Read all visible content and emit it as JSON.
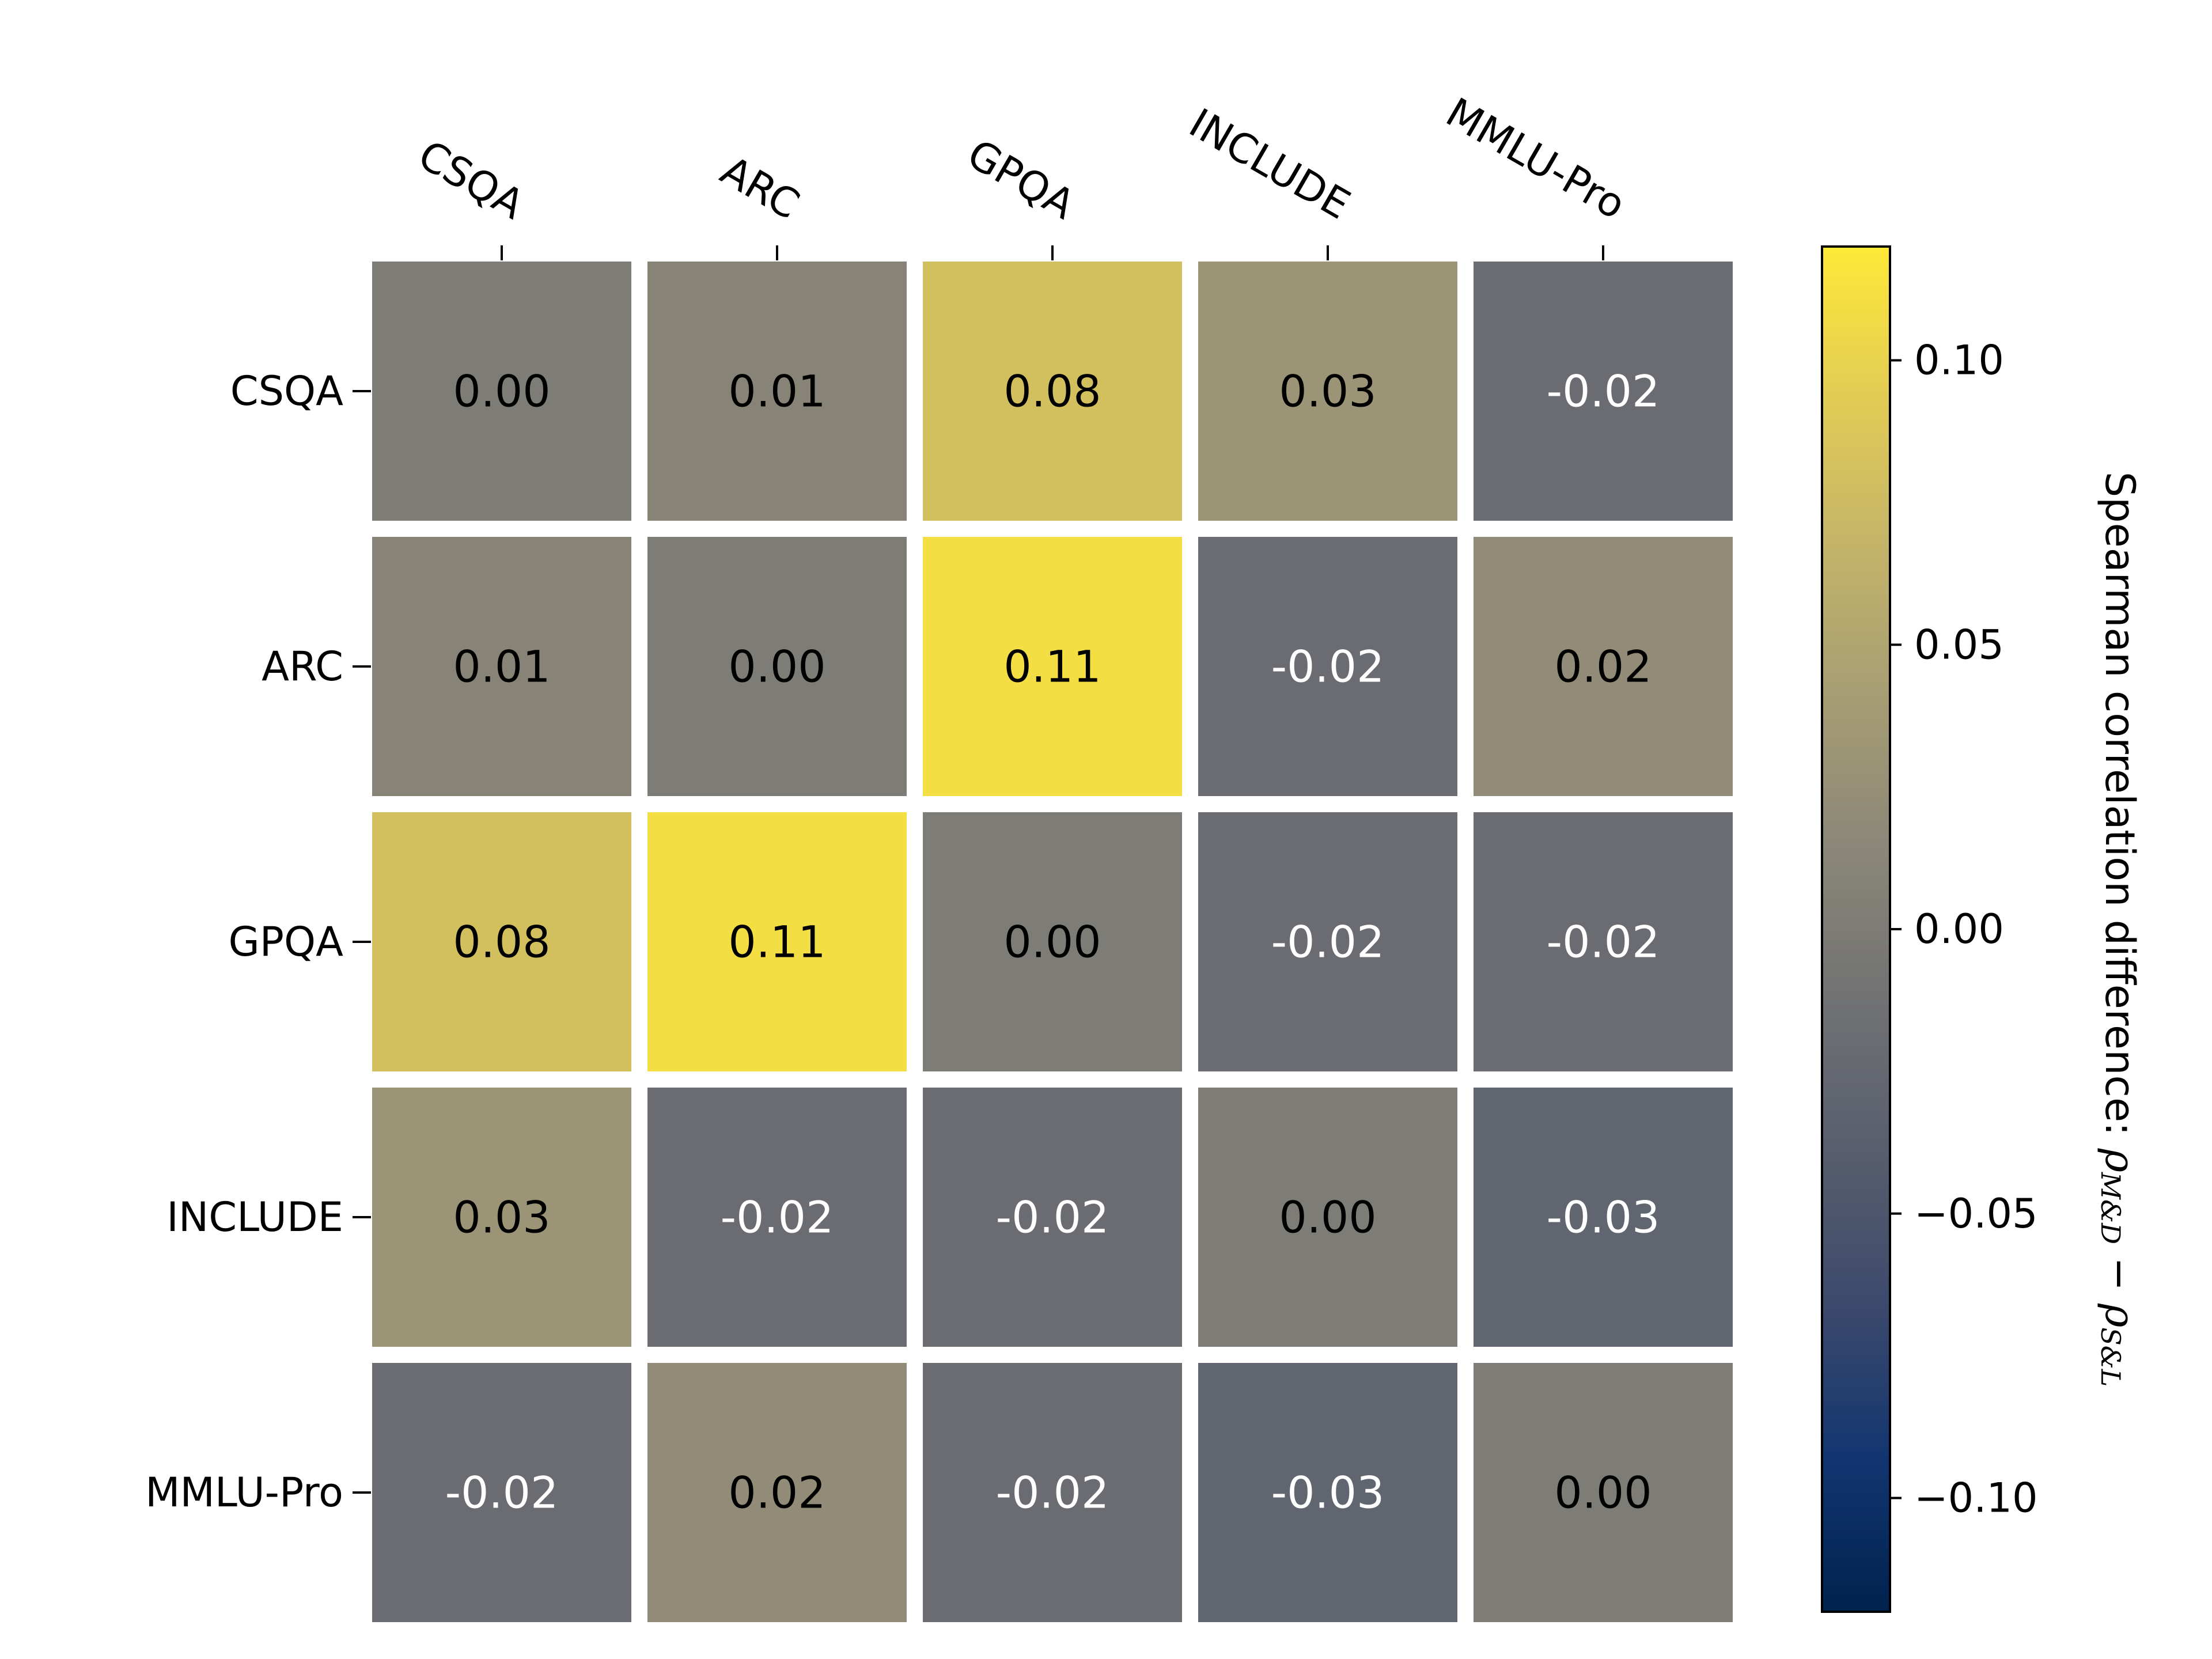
{
  "chart_data": {
    "type": "heatmap",
    "title": "",
    "x_categories": [
      "CSQA",
      "ARC",
      "GPQA",
      "INCLUDE",
      "MMLU-Pro"
    ],
    "y_categories": [
      "CSQA",
      "ARC",
      "GPQA",
      "INCLUDE",
      "MMLU-Pro"
    ],
    "values": [
      [
        0.0,
        0.01,
        0.08,
        0.03,
        -0.02
      ],
      [
        0.01,
        0.0,
        0.11,
        -0.02,
        0.02
      ],
      [
        0.08,
        0.11,
        0.0,
        -0.02,
        -0.02
      ],
      [
        0.03,
        -0.02,
        -0.02,
        0.0,
        -0.03
      ],
      [
        -0.02,
        0.02,
        -0.02,
        -0.03,
        0.0
      ]
    ],
    "value_labels": [
      [
        "0.00",
        "0.01",
        "0.08",
        "0.03",
        "-0.02"
      ],
      [
        "0.01",
        "0.00",
        "0.11",
        "-0.02",
        "0.02"
      ],
      [
        "0.08",
        "0.11",
        "0.00",
        "-0.02",
        "-0.02"
      ],
      [
        "0.03",
        "-0.02",
        "-0.02",
        "0.00",
        "-0.03"
      ],
      [
        "-0.02",
        "0.02",
        "-0.02",
        "-0.03",
        "0.00"
      ]
    ],
    "colormap": "cividis",
    "color_range": [
      -0.12,
      0.12
    ],
    "colorbar": {
      "ticks": [
        0.1,
        0.05,
        0.0,
        -0.05,
        -0.1
      ],
      "tick_labels": [
        "0.10",
        "0.05",
        "0.00",
        "−0.05",
        "−0.10"
      ],
      "label_prefix": "Spearman correlation difference: ",
      "label_rho_1": "ρ",
      "label_sub_1": "M&D",
      "label_minus": " − ",
      "label_rho_2": "ρ",
      "label_sub_2": "S&L"
    },
    "x_axis_position": "top",
    "x_tick_rotation": "-30 degrees"
  },
  "colors": {
    "cividis_stops": [
      "#00224e",
      "#123570",
      "#3b496c",
      "#575d6d",
      "#707173",
      "#8a8678",
      "#a59c74",
      "#c3b369",
      "#e1cc55",
      "#fee838"
    ],
    "cell_gap": "#ffffff",
    "text_dark": "#000000",
    "text_light": "#ffffff"
  }
}
